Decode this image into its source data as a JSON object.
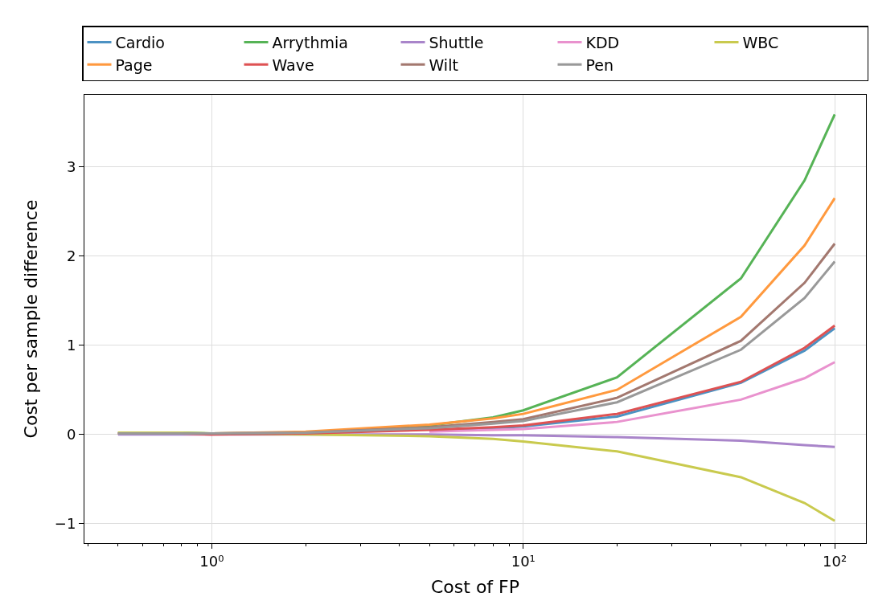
{
  "chart_data": {
    "type": "line",
    "xlabel": "Cost of FP",
    "ylabel": "Cost per sample difference",
    "x": [
      0.5,
      0.8,
      1,
      2,
      5,
      8,
      10,
      20,
      50,
      80,
      100
    ],
    "series": [
      {
        "name": "Cardio",
        "color": "#4c92c3",
        "values": [
          null,
          null,
          null,
          null,
          0.04,
          0.07,
          0.09,
          0.2,
          0.58,
          0.94,
          1.19
        ]
      },
      {
        "name": "Arrythmia",
        "color": "#56b356",
        "values": [
          0.02,
          0.02,
          0.01,
          0.02,
          0.1,
          0.19,
          0.27,
          0.64,
          1.75,
          2.85,
          3.59
        ]
      },
      {
        "name": "Shuttle",
        "color": "#a985ca",
        "values": [
          0.0,
          0.0,
          0.0,
          0.0,
          0.0,
          -0.01,
          -0.01,
          -0.03,
          -0.07,
          -0.12,
          -0.14
        ]
      },
      {
        "name": "KDD",
        "color": "#e992ce",
        "values": [
          0.01,
          0.01,
          0.0,
          null,
          0.03,
          0.05,
          0.06,
          0.14,
          0.39,
          0.63,
          0.81
        ]
      },
      {
        "name": "WBC",
        "color": "#c9ca4e",
        "values": [
          0.02,
          0.02,
          0.01,
          0.0,
          -0.02,
          -0.05,
          -0.08,
          -0.19,
          -0.48,
          -0.77,
          -0.97
        ]
      },
      {
        "name": "Page",
        "color": "#ff993e",
        "values": [
          null,
          null,
          0.01,
          0.03,
          0.11,
          0.18,
          0.23,
          0.5,
          1.32,
          2.12,
          2.65
        ]
      },
      {
        "name": "Wave",
        "color": "#de5253",
        "values": [
          0.01,
          0.01,
          0.0,
          0.01,
          0.05,
          0.08,
          0.1,
          0.23,
          0.59,
          0.97,
          1.22
        ]
      },
      {
        "name": "Wilt",
        "color": "#a3786f",
        "values": [
          0.01,
          0.01,
          0.01,
          0.02,
          0.08,
          0.14,
          0.17,
          0.41,
          1.05,
          1.7,
          2.14
        ]
      },
      {
        "name": "Pen",
        "color": "#999999",
        "values": [
          0.01,
          0.01,
          0.01,
          0.02,
          0.07,
          0.12,
          0.15,
          0.36,
          0.95,
          1.53,
          1.94
        ]
      }
    ],
    "log": "x",
    "xlim": [
      0.39,
      126
    ],
    "ylim": [
      -1.22,
      3.81
    ],
    "xticks": [
      {
        "value": 1,
        "label": "10⁰"
      },
      {
        "value": 10,
        "label": "10¹"
      },
      {
        "value": 100,
        "label": "10²"
      }
    ],
    "yticks": [
      {
        "value": -1,
        "label": "−1"
      },
      0,
      1,
      2,
      3
    ],
    "grid": true,
    "legend": "top",
    "marker": "none",
    "line_style": "solid"
  }
}
